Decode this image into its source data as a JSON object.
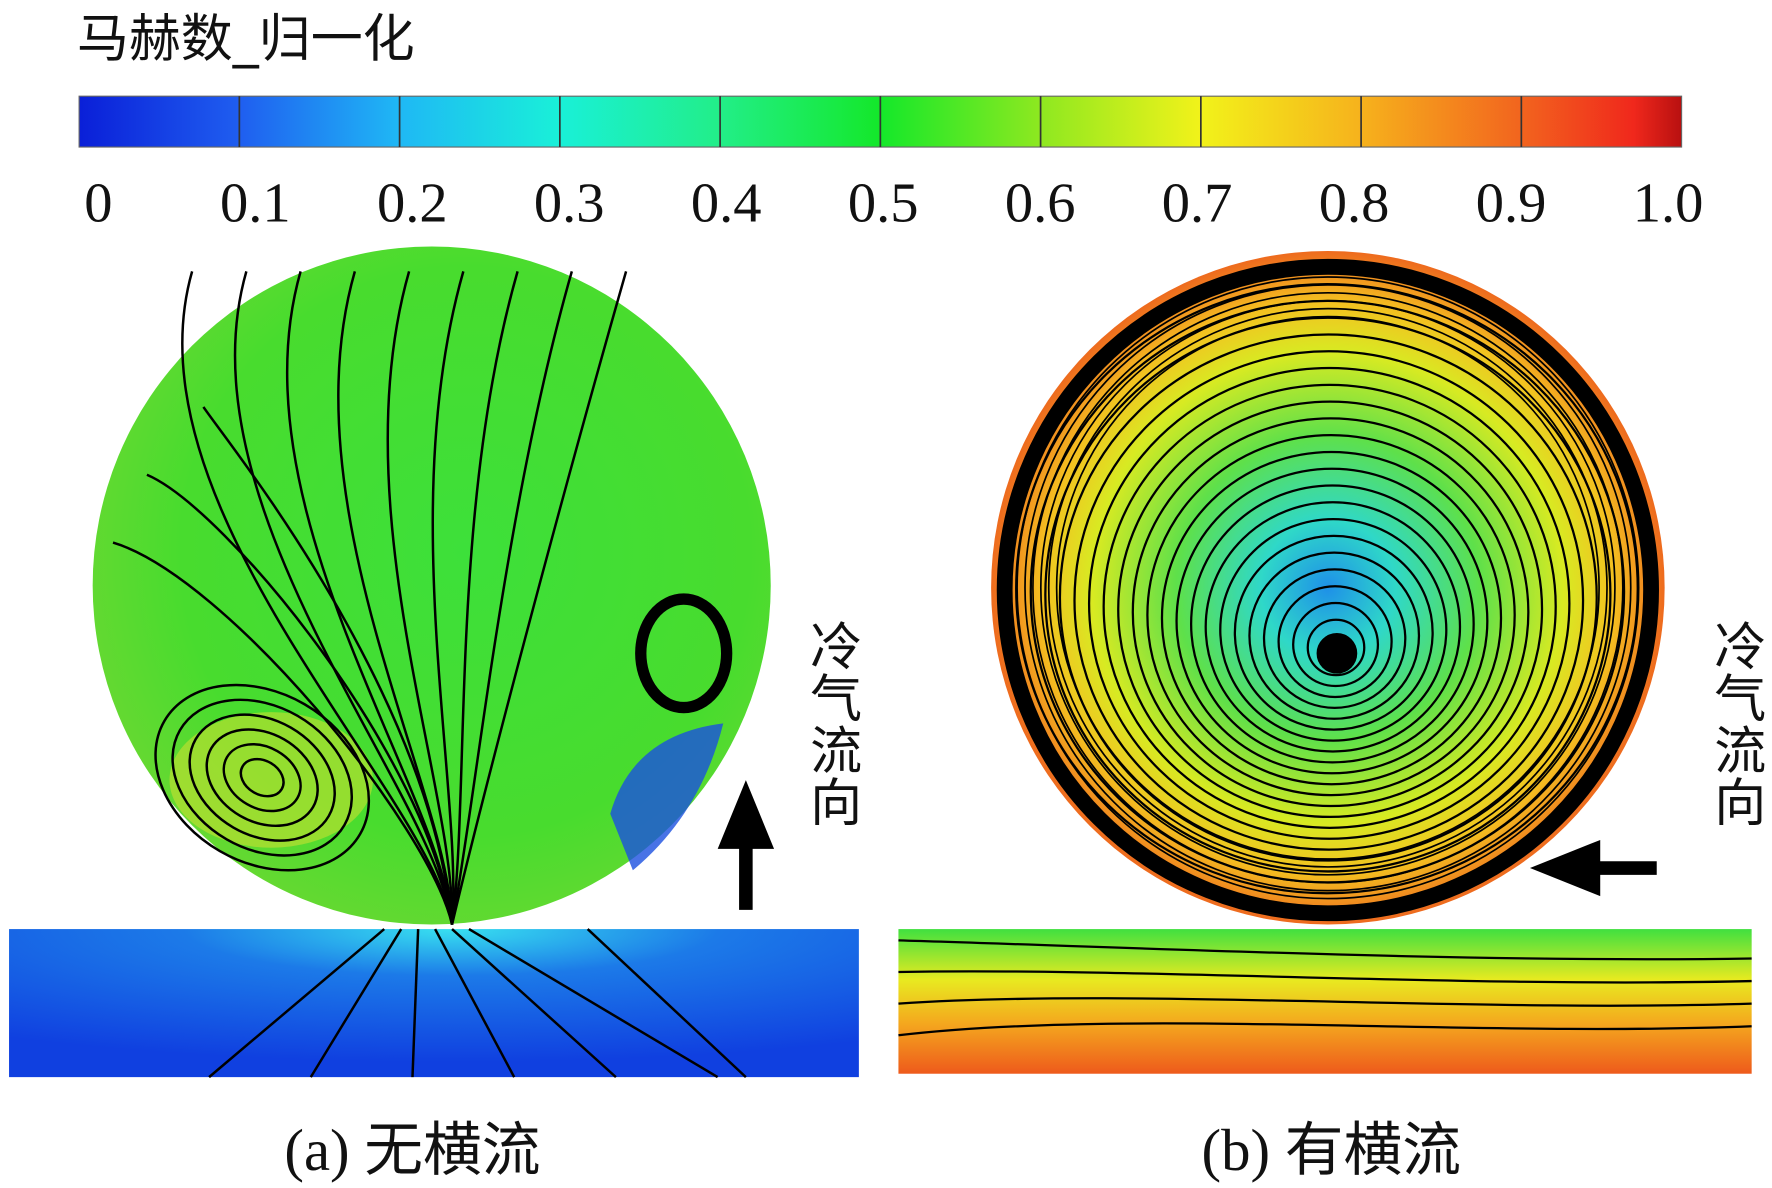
{
  "colorbar": {
    "title": "马赫数_归一化",
    "ticks": [
      "0",
      "0.1",
      "0.2",
      "0.3",
      "0.4",
      "0.5",
      "0.6",
      "0.7",
      "0.8",
      "0.9",
      "1.0"
    ]
  },
  "panels": [
    {
      "caption": "(a) 无横流",
      "flow_label": "冷气流向"
    },
    {
      "caption": "(b) 有横流",
      "flow_label": "冷气流向"
    }
  ]
}
